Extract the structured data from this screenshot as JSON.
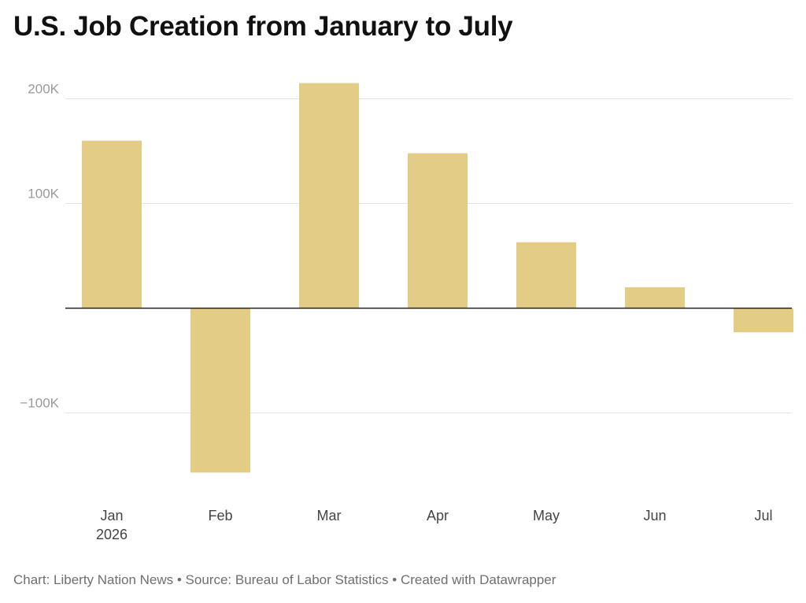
{
  "title": "U.S. Job Creation from January to July",
  "footer": {
    "chart_credit": "Chart: Liberty Nation News",
    "separator": " • ",
    "source": "Source: Bureau of Labor Statistics",
    "created_with": "Created with Datawrapper"
  },
  "colors": {
    "bar": "#e3cc86",
    "grid": "#e4e4e4",
    "zero_line": "#222222",
    "tick_label": "#9a9a9a",
    "category_label": "#444444"
  },
  "chart_data": {
    "type": "bar",
    "title": "U.S. Job Creation from January to July",
    "categories": [
      "Jan",
      "Feb",
      "Mar",
      "Apr",
      "May",
      "Jun",
      "Jul"
    ],
    "category_sublabels": [
      "2026",
      "",
      "",
      "",
      "",
      "",
      ""
    ],
    "values": [
      160000,
      -157000,
      215000,
      148000,
      63000,
      20000,
      -23000
    ],
    "ylim": [
      -175000,
      215000
    ],
    "y_ticks": [
      {
        "value": 200000,
        "label": "200K"
      },
      {
        "value": 100000,
        "label": "100K"
      },
      {
        "value": -100000,
        "label": "−100K"
      }
    ],
    "grid": true,
    "legend": false,
    "xlabel": "",
    "ylabel": ""
  }
}
